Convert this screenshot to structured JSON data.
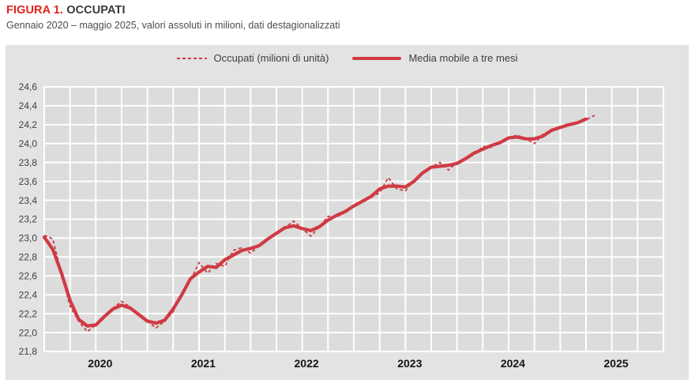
{
  "header": {
    "figure_label": "FIGURA 1.",
    "figure_title": "OCCUPATI",
    "subtitle": "Gennaio 2020 – maggio 2025, valori assoluti in milioni, dati destagionalizzati"
  },
  "colors": {
    "accent_red": "#e5231b",
    "series_red": "#cf3a43",
    "panel_bg": "#e3e3e3",
    "plot_bg": "#dcdcdc",
    "grid_white": "#ffffff",
    "text_dark": "#3a3a39",
    "text_gray": "#4d4d4d"
  },
  "chart_data": {
    "type": "line",
    "title": "FIGURA 1. OCCUPATI",
    "subtitle": "Gennaio 2020 – maggio 2025, valori assoluti in milioni, dati destagionalizzati",
    "xlabel": "",
    "ylabel": "",
    "x_frequency": "monthly",
    "x_start": "2020-01",
    "x_end": "2025-05",
    "x_tick_labels": [
      "2020",
      "2021",
      "2022",
      "2023",
      "2024",
      "2025"
    ],
    "ylim": [
      21.8,
      24.6
    ],
    "y_tick_step": 0.2,
    "decimal_separator": ",",
    "grid": "white gridlines on gray, vertical quarterly, horizontal every 0.2",
    "legend_position": "top-center",
    "series": [
      {
        "name": "Occupati (milioni di unità)",
        "style": "dashed",
        "values": [
          23.03,
          22.99,
          22.62,
          22.28,
          22.12,
          22.01,
          22.08,
          22.16,
          22.26,
          22.33,
          22.27,
          22.18,
          22.12,
          22.05,
          22.12,
          22.22,
          22.42,
          22.55,
          22.74,
          22.63,
          22.73,
          22.7,
          22.87,
          22.9,
          22.84,
          22.92,
          22.99,
          23.05,
          23.11,
          23.18,
          23.1,
          23.02,
          23.12,
          23.23,
          23.22,
          23.28,
          23.35,
          23.4,
          23.43,
          23.48,
          23.64,
          23.52,
          23.5,
          23.61,
          23.7,
          23.75,
          23.8,
          23.72,
          23.8,
          23.85,
          23.88,
          23.97,
          23.96,
          24.02,
          24.06,
          24.09,
          24.05,
          24.0,
          24.1,
          24.14,
          24.18,
          24.19,
          24.23,
          24.25,
          24.3
        ]
      },
      {
        "name": "Media mobile a tre mesi",
        "style": "solid",
        "values": [
          23.01,
          22.88,
          22.63,
          22.34,
          22.14,
          22.07,
          22.08,
          22.17,
          22.25,
          22.29,
          22.26,
          22.19,
          22.12,
          22.1,
          22.13,
          22.25,
          22.4,
          22.57,
          22.64,
          22.7,
          22.69,
          22.77,
          22.82,
          22.87,
          22.89,
          22.92,
          22.99,
          23.05,
          23.11,
          23.13,
          23.1,
          23.08,
          23.12,
          23.19,
          23.24,
          23.28,
          23.34,
          23.39,
          23.44,
          23.52,
          23.55,
          23.55,
          23.54,
          23.6,
          23.69,
          23.75,
          23.76,
          23.77,
          23.79,
          23.84,
          23.9,
          23.94,
          23.98,
          24.01,
          24.06,
          24.07,
          24.05,
          24.05,
          24.08,
          24.14,
          24.17,
          24.2,
          24.22,
          24.26
        ]
      }
    ]
  }
}
